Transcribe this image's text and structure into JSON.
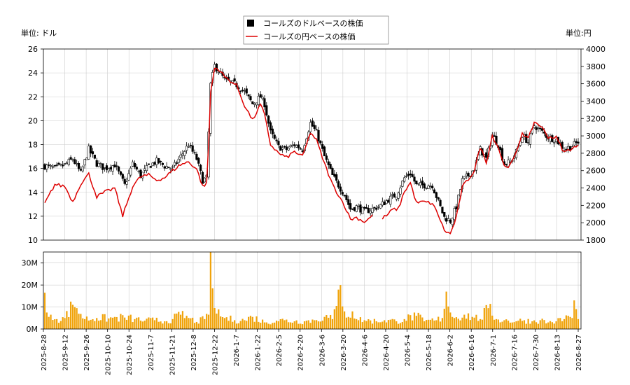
{
  "chart_data": {
    "type": "candlestick-with-line",
    "legend": {
      "placement": "top-center",
      "entries": [
        {
          "label": "コールズのドルベースの株価",
          "marker": "square",
          "color": "#000000"
        },
        {
          "label": "コールズの円ベースの株価",
          "marker": "line",
          "color": "#dd0000"
        }
      ]
    },
    "left_unit_label": "単位: ドル",
    "right_unit_label": "単位:円",
    "price_axis": {
      "left_ylim": [
        10,
        26
      ],
      "left_ticks": [
        "10",
        "12",
        "14",
        "16",
        "18",
        "20",
        "22",
        "24",
        "26"
      ],
      "right_ylim": [
        1800,
        4000
      ],
      "right_ticks": [
        "1800",
        "2000",
        "2200",
        "2400",
        "2600",
        "2800",
        "3000",
        "3200",
        "3400",
        "3600",
        "3800",
        "4000"
      ],
      "grid": true
    },
    "volume_axis": {
      "ylim": [
        0,
        35
      ],
      "ticks": [
        "0M",
        "10M",
        "20M",
        "30M"
      ],
      "grid": true
    },
    "x_tick_labels": [
      "2025-8-28",
      "2025-9-12",
      "2025-9-26",
      "2025-10-10",
      "2025-10-24",
      "2025-11-7",
      "2025-11-21",
      "2025-12-8",
      "2025-12-22",
      "2026-1-7",
      "2026-1-22",
      "2026-2-5",
      "2026-2-20",
      "2026-3-6",
      "2026-3-20",
      "2026-4-6",
      "2026-4-20",
      "2026-5-4",
      "2026-5-18",
      "2026-6-2",
      "2026-6-16",
      "2026-7-1",
      "2026-7-16",
      "2026-7-30",
      "2026-8-13",
      "2026-8-27"
    ],
    "dollar_close_keypoints": [
      [
        0,
        16.2
      ],
      [
        5,
        16.0
      ],
      [
        10,
        16.3
      ],
      [
        14,
        16.8
      ],
      [
        18,
        15.6
      ],
      [
        22,
        17.6
      ],
      [
        26,
        16.4
      ],
      [
        30,
        16.0
      ],
      [
        35,
        16.3
      ],
      [
        40,
        14.6
      ],
      [
        44,
        16.4
      ],
      [
        48,
        15.4
      ],
      [
        52,
        16.2
      ],
      [
        56,
        16.6
      ],
      [
        60,
        16.2
      ],
      [
        64,
        16.0
      ],
      [
        68,
        17.0
      ],
      [
        72,
        18.0
      ],
      [
        76,
        16.8
      ],
      [
        79,
        15.0
      ],
      [
        81,
        15.2
      ],
      [
        82,
        19.0
      ],
      [
        83,
        23.0
      ],
      [
        85,
        24.6
      ],
      [
        87,
        24.2
      ],
      [
        90,
        23.4
      ],
      [
        93,
        23.2
      ],
      [
        96,
        23.0
      ],
      [
        100,
        22.4
      ],
      [
        104,
        21.4
      ],
      [
        108,
        22.0
      ],
      [
        110,
        21.4
      ],
      [
        113,
        19.0
      ],
      [
        117,
        17.8
      ],
      [
        121,
        17.6
      ],
      [
        125,
        18.0
      ],
      [
        129,
        17.6
      ],
      [
        133,
        19.8
      ],
      [
        136,
        19.0
      ],
      [
        140,
        17.0
      ],
      [
        144,
        15.4
      ],
      [
        147,
        14.6
      ],
      [
        150,
        13.8
      ],
      [
        153,
        12.6
      ],
      [
        156,
        12.8
      ],
      [
        160,
        12.4
      ],
      [
        164,
        12.6
      ],
      [
        168,
        12.9
      ],
      [
        172,
        13.4
      ],
      [
        176,
        13.8
      ],
      [
        180,
        15.2
      ],
      [
        183,
        15.6
      ],
      [
        186,
        14.6
      ],
      [
        190,
        14.6
      ],
      [
        194,
        14.6
      ],
      [
        197,
        13.2
      ],
      [
        200,
        11.9
      ],
      [
        203,
        11.6
      ],
      [
        206,
        12.8
      ],
      [
        209,
        15.0
      ],
      [
        212,
        15.4
      ],
      [
        215,
        16.0
      ],
      [
        218,
        17.6
      ],
      [
        221,
        16.8
      ],
      [
        224,
        18.8
      ],
      [
        227,
        18.0
      ],
      [
        230,
        16.4
      ],
      [
        233,
        16.5
      ],
      [
        236,
        17.4
      ],
      [
        239,
        18.8
      ],
      [
        242,
        18.2
      ],
      [
        245,
        19.6
      ],
      [
        248,
        19.2
      ],
      [
        252,
        18.6
      ],
      [
        256,
        18.4
      ],
      [
        260,
        17.6
      ],
      [
        264,
        17.9
      ],
      [
        267,
        18.2
      ]
    ],
    "yen_keypoints": [
      [
        0,
        2220
      ],
      [
        5,
        2440
      ],
      [
        10,
        2420
      ],
      [
        14,
        2240
      ],
      [
        18,
        2450
      ],
      [
        22,
        2560
      ],
      [
        26,
        2300
      ],
      [
        30,
        2350
      ],
      [
        35,
        2400
      ],
      [
        39,
        2080
      ],
      [
        44,
        2420
      ],
      [
        48,
        2530
      ],
      [
        52,
        2550
      ],
      [
        56,
        2490
      ],
      [
        60,
        2520
      ],
      [
        64,
        2600
      ],
      [
        68,
        2670
      ],
      [
        72,
        2700
      ],
      [
        76,
        2620
      ],
      [
        79,
        2420
      ],
      [
        81,
        2450
      ],
      [
        82,
        2900
      ],
      [
        83,
        3500
      ],
      [
        85,
        3780
      ],
      [
        87,
        3770
      ],
      [
        90,
        3680
      ],
      [
        93,
        3630
      ],
      [
        96,
        3580
      ],
      [
        100,
        3350
      ],
      [
        104,
        3180
      ],
      [
        108,
        3360
      ],
      [
        110,
        3240
      ],
      [
        113,
        2900
      ],
      [
        117,
        2800
      ],
      [
        121,
        2750
      ],
      [
        125,
        2820
      ],
      [
        129,
        2760
      ],
      [
        133,
        3040
      ],
      [
        136,
        2950
      ],
      [
        140,
        2680
      ],
      [
        144,
        2440
      ],
      [
        147,
        2320
      ],
      [
        150,
        2200
      ],
      [
        153,
        2040
      ],
      [
        156,
        2060
      ],
      [
        160,
        2010
      ],
      [
        164,
        2080
      ],
      [
        168,
        2040
      ],
      [
        171,
        2080
      ],
      [
        174,
        2150
      ],
      [
        177,
        2160
      ],
      [
        180,
        2360
      ],
      [
        183,
        2460
      ],
      [
        186,
        2230
      ],
      [
        190,
        2240
      ],
      [
        194,
        2220
      ],
      [
        197,
        2090
      ],
      [
        200,
        1910
      ],
      [
        203,
        1870
      ],
      [
        206,
        2060
      ],
      [
        209,
        2410
      ],
      [
        212,
        2500
      ],
      [
        215,
        2600
      ],
      [
        218,
        2870
      ],
      [
        221,
        2700
      ],
      [
        224,
        3000
      ],
      [
        227,
        2870
      ],
      [
        230,
        2650
      ],
      [
        233,
        2660
      ],
      [
        236,
        2800
      ],
      [
        239,
        3040
      ],
      [
        242,
        2960
      ],
      [
        245,
        3160
      ],
      [
        248,
        3120
      ],
      [
        252,
        2990
      ],
      [
        256,
        2980
      ],
      [
        260,
        2810
      ],
      [
        264,
        2860
      ],
      [
        267,
        2880
      ]
    ],
    "yen_gap_range": [
      165,
      168
    ],
    "volume_keypoints_millions": [
      [
        0,
        16.5
      ],
      [
        1,
        7.5
      ],
      [
        2,
        5.5
      ],
      [
        3,
        6.5
      ],
      [
        6,
        4.5
      ],
      [
        10,
        5.0
      ],
      [
        14,
        11.0
      ],
      [
        16,
        9.5
      ],
      [
        20,
        4.5
      ],
      [
        26,
        5.0
      ],
      [
        32,
        4.8
      ],
      [
        40,
        5.2
      ],
      [
        45,
        4.5
      ],
      [
        50,
        3.8
      ],
      [
        55,
        4.0
      ],
      [
        60,
        3.5
      ],
      [
        64,
        4.5
      ],
      [
        68,
        6.5
      ],
      [
        72,
        5.0
      ],
      [
        76,
        3.2
      ],
      [
        80,
        4.5
      ],
      [
        82,
        6.5
      ],
      [
        83,
        35.0
      ],
      [
        84,
        18.5
      ],
      [
        86,
        7.0
      ],
      [
        90,
        5.0
      ],
      [
        95,
        4.0
      ],
      [
        100,
        4.0
      ],
      [
        104,
        5.5
      ],
      [
        110,
        3.0
      ],
      [
        116,
        3.8
      ],
      [
        120,
        4.0
      ],
      [
        125,
        3.5
      ],
      [
        130,
        3.5
      ],
      [
        135,
        4.0
      ],
      [
        140,
        5.5
      ],
      [
        144,
        4.5
      ],
      [
        146,
        10.5
      ],
      [
        148,
        20.0
      ],
      [
        150,
        8.0
      ],
      [
        152,
        5.5
      ],
      [
        154,
        8.0
      ],
      [
        156,
        4.5
      ],
      [
        160,
        4.0
      ],
      [
        166,
        3.5
      ],
      [
        170,
        4.0
      ],
      [
        176,
        3.5
      ],
      [
        180,
        4.5
      ],
      [
        186,
        6.0
      ],
      [
        190,
        3.5
      ],
      [
        196,
        4.0
      ],
      [
        199,
        5.0
      ],
      [
        201,
        17.0
      ],
      [
        203,
        7.5
      ],
      [
        205,
        5.0
      ],
      [
        210,
        6.5
      ],
      [
        214,
        5.5
      ],
      [
        218,
        4.5
      ],
      [
        222,
        9.5
      ],
      [
        226,
        4.5
      ],
      [
        230,
        4.0
      ],
      [
        236,
        3.5
      ],
      [
        240,
        4.0
      ],
      [
        244,
        3.5
      ],
      [
        248,
        4.0
      ],
      [
        252,
        3.0
      ],
      [
        256,
        3.5
      ],
      [
        260,
        4.5
      ],
      [
        262,
        6.0
      ],
      [
        264,
        5.0
      ],
      [
        265,
        13.0
      ],
      [
        267,
        4.5
      ]
    ]
  }
}
